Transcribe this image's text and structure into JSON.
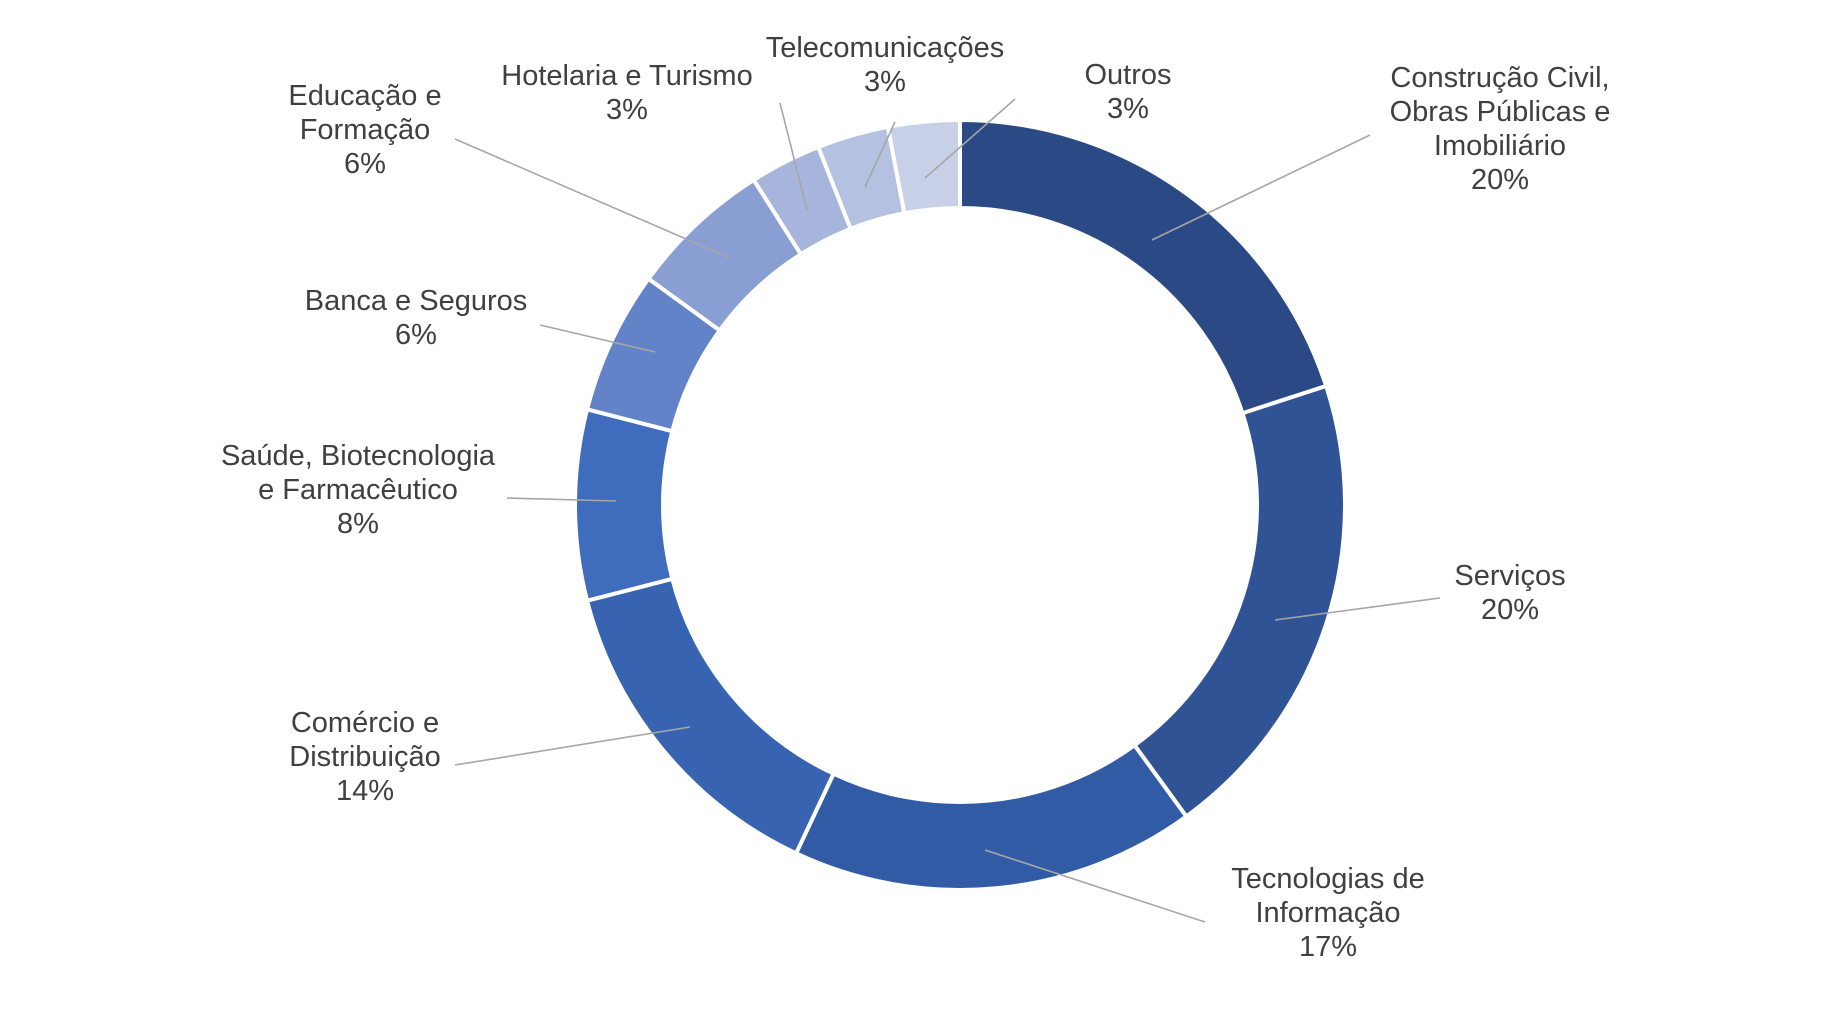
{
  "chart_data": {
    "type": "pie",
    "variant": "donut",
    "unit": "%",
    "slices": [
      {
        "label": [
          "Construção Civil,",
          "Obras Públicas e",
          "Imobiliário"
        ],
        "value": 20,
        "value_label": "20%",
        "color": "#2b4a85"
      },
      {
        "label": [
          "Serviços"
        ],
        "value": 20,
        "value_label": "20%",
        "color": "#2f5394"
      },
      {
        "label": [
          "Tecnologias de",
          "Informação"
        ],
        "value": 17,
        "value_label": "17%",
        "color": "#325ba6"
      },
      {
        "label": [
          "Comércio e",
          "Distribuição"
        ],
        "value": 14,
        "value_label": "14%",
        "color": "#3863b1"
      },
      {
        "label": [
          "Saúde, Biotecnologia",
          "e Farmacêutico"
        ],
        "value": 8,
        "value_label": "8%",
        "color": "#3f6cbd"
      },
      {
        "label": [
          "Banca e Seguros"
        ],
        "value": 6,
        "value_label": "6%",
        "color": "#6383c8"
      },
      {
        "label": [
          "Educação e",
          "Formação"
        ],
        "value": 6,
        "value_label": "6%",
        "color": "#899ed3"
      },
      {
        "label": [
          "Hotelaria e Turismo"
        ],
        "value": 3,
        "value_label": "3%",
        "color": "#a7b5dc"
      },
      {
        "label": [
          "Telecomunicações"
        ],
        "value": 3,
        "value_label": "3%",
        "color": "#b5c1e1"
      },
      {
        "label": [
          "Outros"
        ],
        "value": 3,
        "value_label": "3%",
        "color": "#c8d0e7"
      }
    ]
  }
}
